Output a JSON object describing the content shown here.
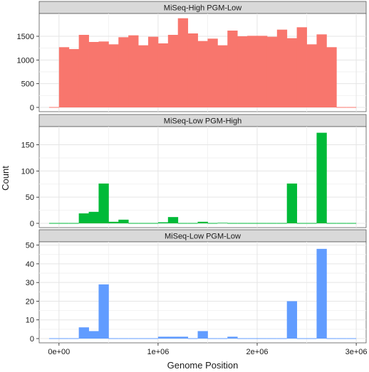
{
  "chart_data": {
    "type": "bar",
    "subtype": "faceted-histogram",
    "xlabel": "Genome Position",
    "ylabel": "Count",
    "xlim": [
      -200000,
      3100000
    ],
    "x_ticks": [
      0,
      1000000,
      2000000,
      3000000
    ],
    "x_tick_labels": [
      "0e+00",
      "1e+06",
      "2e+06",
      "3e+06"
    ],
    "bin_width": 100000,
    "bin_starts": [
      -100000,
      0,
      100000,
      200000,
      300000,
      400000,
      500000,
      600000,
      700000,
      800000,
      900000,
      1000000,
      1100000,
      1200000,
      1300000,
      1400000,
      1500000,
      1600000,
      1700000,
      1800000,
      1900000,
      2000000,
      2100000,
      2200000,
      2300000,
      2400000,
      2500000,
      2600000,
      2700000,
      2800000,
      2900000
    ],
    "grid": true,
    "legend": "none",
    "facets": [
      {
        "title": "MiSeq-High PGM-Low",
        "color": "#F8766D",
        "ylim": [
          0,
          1950
        ],
        "y_ticks": [
          0,
          500,
          1000,
          1500
        ],
        "values": [
          0,
          1270,
          1230,
          1530,
          1380,
          1390,
          1330,
          1480,
          1520,
          1310,
          1490,
          1350,
          1530,
          1880,
          1560,
          1400,
          1450,
          1310,
          1620,
          1500,
          1510,
          1510,
          1490,
          1640,
          1460,
          1690,
          1330,
          1540,
          1270,
          0,
          0
        ]
      },
      {
        "title": "MiSeq-Low PGM-High",
        "color": "#00BA38",
        "ylim": [
          0,
          182
        ],
        "y_ticks": [
          0,
          50,
          100,
          150
        ],
        "values": [
          0,
          0,
          0,
          19,
          22,
          76,
          3,
          7,
          0,
          0,
          0,
          2,
          12,
          0,
          0,
          3,
          0,
          1,
          0,
          0,
          0,
          0,
          0,
          0,
          76,
          0,
          0,
          173,
          0,
          0,
          0
        ]
      },
      {
        "title": "MiSeq-Low PGM-Low",
        "color": "#619CFF",
        "ylim": [
          0,
          51
        ],
        "y_ticks": [
          0,
          10,
          20,
          30,
          40,
          50
        ],
        "values": [
          0,
          0,
          0,
          6,
          4,
          29,
          0,
          0,
          0,
          0,
          0,
          1,
          1,
          1,
          0,
          4,
          0,
          0,
          1,
          0,
          0,
          0,
          0,
          0,
          20,
          0,
          0,
          48,
          0,
          0,
          0
        ]
      }
    ]
  }
}
